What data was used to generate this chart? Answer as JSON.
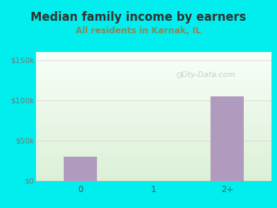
{
  "title": "Median family income by earners",
  "subtitle": "All residents in Karnak, IL",
  "categories": [
    "0",
    "1",
    "2+"
  ],
  "values": [
    30000,
    0,
    105000
  ],
  "bar_color": "#b09abe",
  "title_color": "#333333",
  "subtitle_color": "#888855",
  "background_color": "#00eeee",
  "plot_bg_top": "#f8fff8",
  "plot_bg_bottom": "#dff0d8",
  "yticks": [
    0,
    50000,
    100000,
    150000
  ],
  "ytick_labels": [
    "$0",
    "$50k",
    "$100k",
    "$150k"
  ],
  "ylim": [
    0,
    160000
  ],
  "watermark": "City-Data.com",
  "axis_color": "#aaaaaa",
  "grid_color": "#dddddd"
}
